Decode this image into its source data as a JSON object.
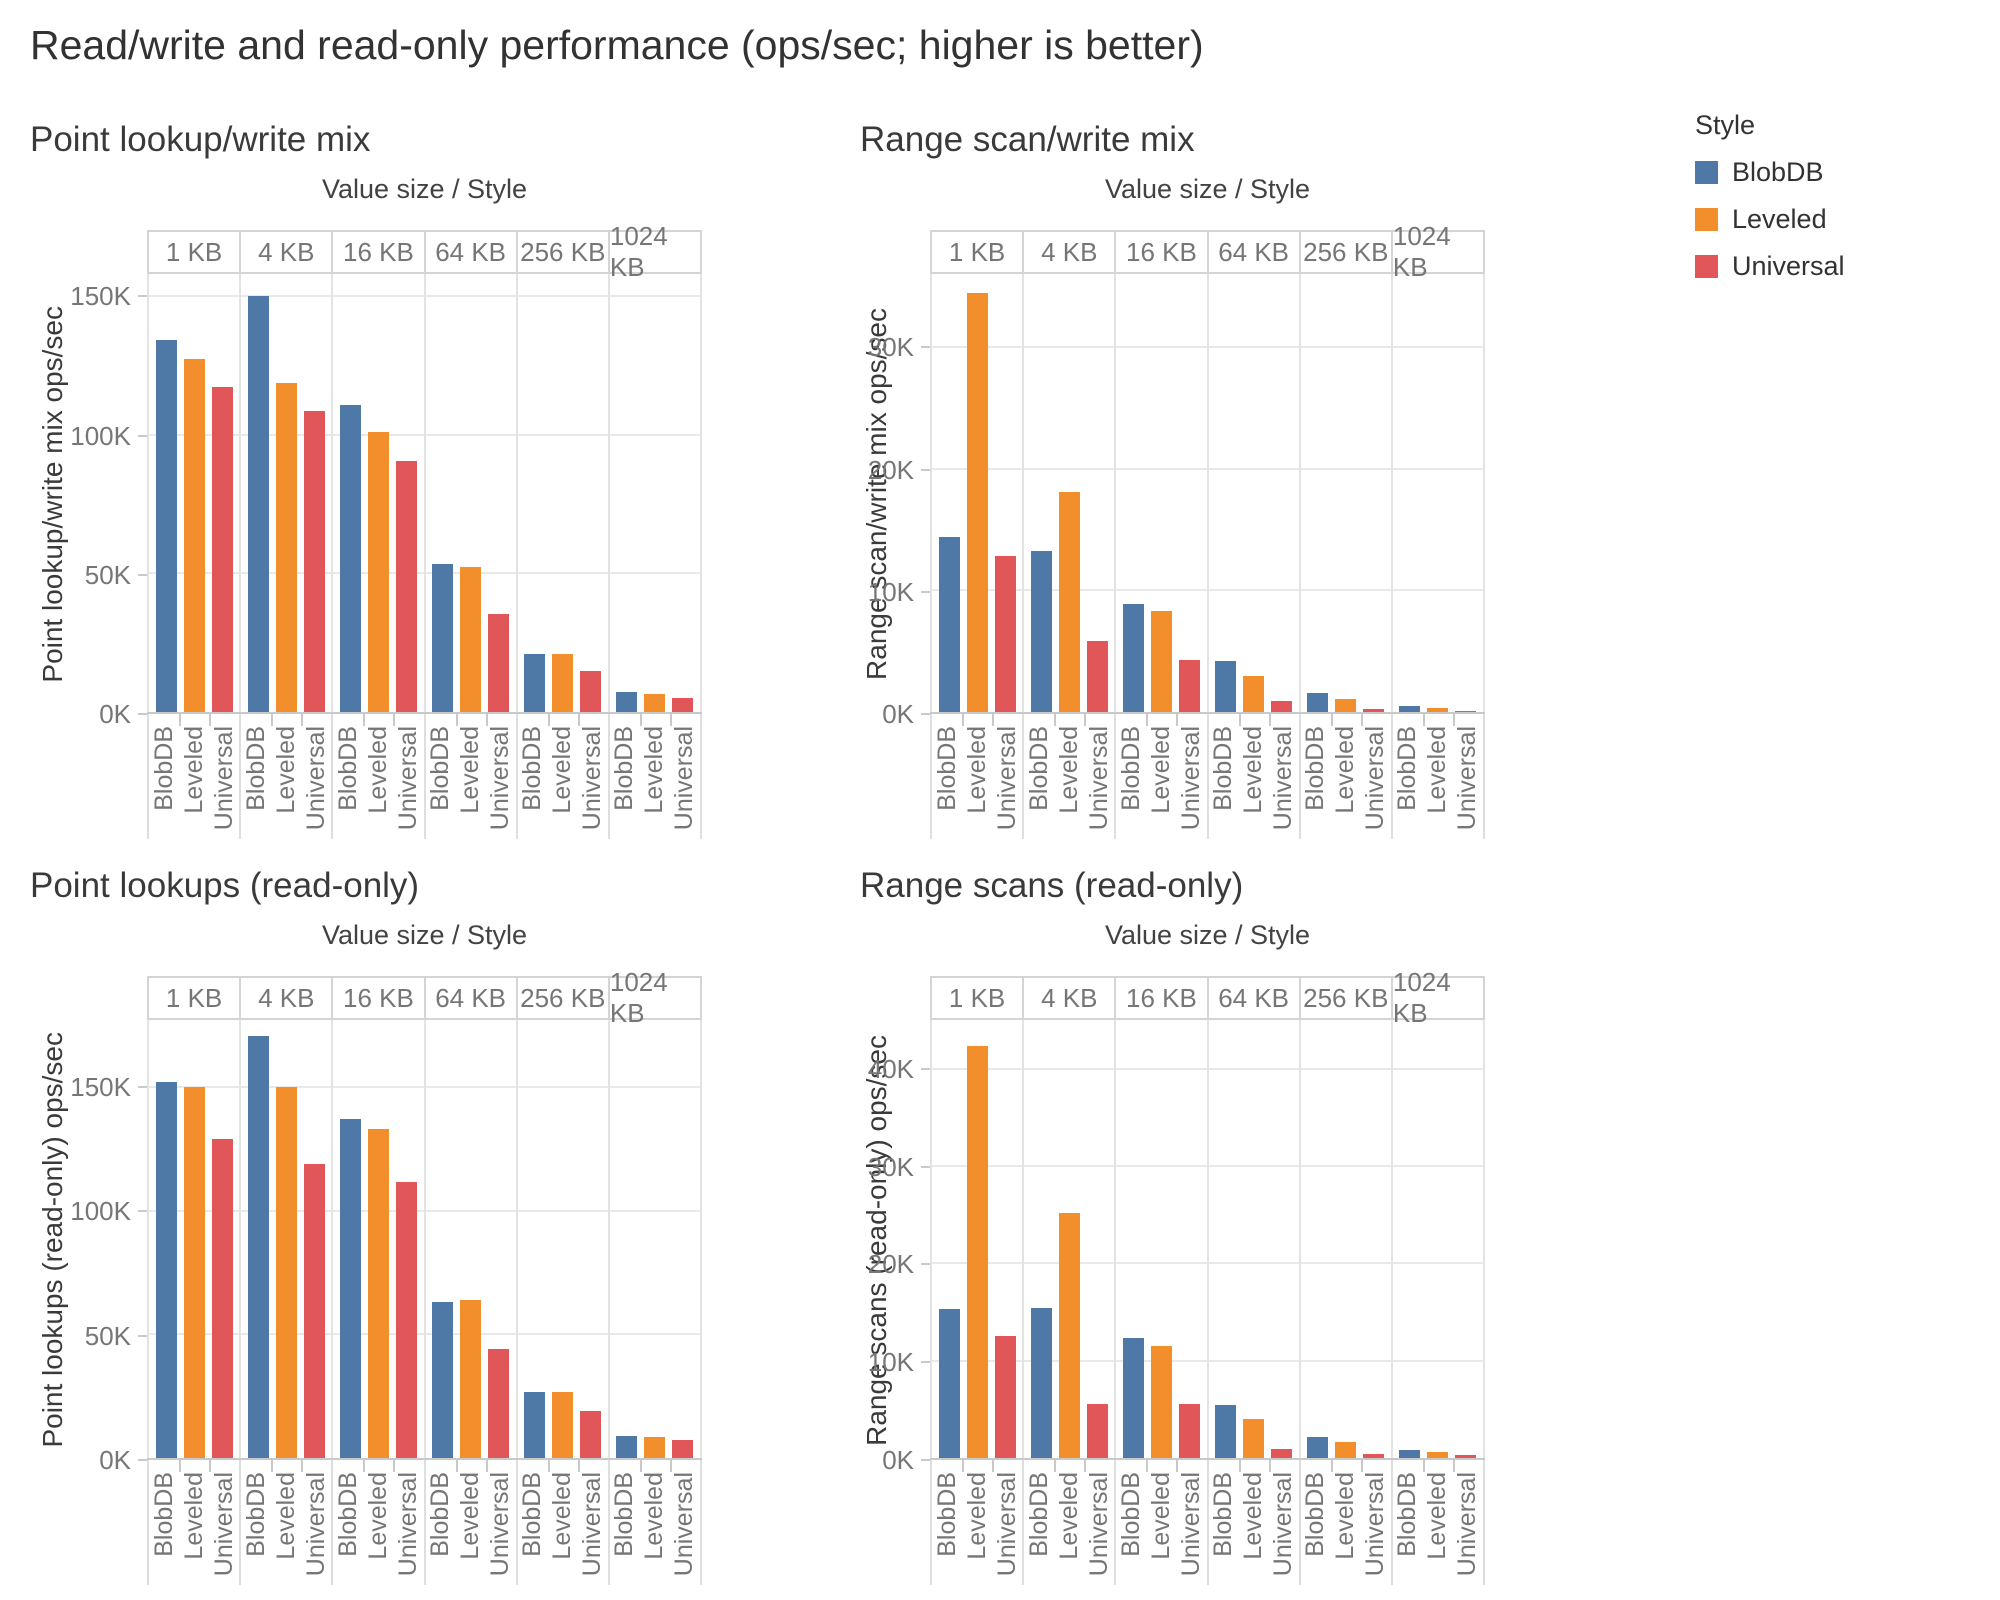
{
  "page_title": "Read/write and read-only performance (ops/sec; higher is better)",
  "styles": [
    "BlobDB",
    "Leveled",
    "Universal"
  ],
  "legend": {
    "title": "Style",
    "items": [
      {
        "label": "BlobDB",
        "color": "#4e79a7"
      },
      {
        "label": "Leveled",
        "color": "#f28e2b"
      },
      {
        "label": "Universal",
        "color": "#e15759"
      }
    ]
  },
  "colors": {
    "blue": "#4e79a7",
    "orange": "#f28e2b",
    "red": "#e15759",
    "gridline": "#e9e9e9",
    "axis": "#c9c9c9",
    "tick_text": "#767676",
    "title_text": "#323232"
  },
  "chart_data": [
    {
      "type": "bar",
      "title": "Point lookup/write mix",
      "col_header": "Value size  /  Style",
      "ylabel": "Point lookup/write mix ops/sec",
      "unit": "thousand ops/sec",
      "categories": [
        "1 KB",
        "4 KB",
        "16 KB",
        "64 KB",
        "256 KB",
        "1024 KB"
      ],
      "series": [
        {
          "name": "BlobDB",
          "values": [
            134.3,
            150.0,
            110.8,
            53.4,
            21.0,
            7.2
          ]
        },
        {
          "name": "Leveled",
          "values": [
            127.2,
            118.6,
            101.0,
            52.2,
            21.0,
            6.6
          ]
        },
        {
          "name": "Universal",
          "values": [
            117.2,
            108.6,
            90.7,
            35.2,
            14.8,
            5.0
          ]
        }
      ],
      "ylim": [
        0,
        158
      ],
      "yticks": [
        {
          "label": "0K",
          "value": 0
        },
        {
          "label": "50K",
          "value": 50
        },
        {
          "label": "100K",
          "value": 100
        },
        {
          "label": "150K",
          "value": 150
        }
      ],
      "grid": true,
      "legend_position": "top-right-of-page"
    },
    {
      "type": "bar",
      "title": "Range scan/write mix",
      "col_header": "Value size  /  Style",
      "ylabel": "Range scan/write mix ops/sec",
      "unit": "thousand ops/sec",
      "categories": [
        "1 KB",
        "4 KB",
        "16 KB",
        "64 KB",
        "256 KB",
        "1024 KB"
      ],
      "series": [
        {
          "name": "BlobDB",
          "values": [
            14.4,
            13.2,
            8.9,
            4.2,
            1.6,
            0.5
          ]
        },
        {
          "name": "Leveled",
          "values": [
            34.4,
            18.1,
            8.3,
            3.0,
            1.1,
            0.35
          ]
        },
        {
          "name": "Universal",
          "values": [
            12.8,
            5.8,
            4.3,
            0.9,
            0.25,
            0.1
          ]
        }
      ],
      "ylim": [
        0,
        36
      ],
      "yticks": [
        {
          "label": "0K",
          "value": 0
        },
        {
          "label": "10K",
          "value": 10
        },
        {
          "label": "20K",
          "value": 20
        },
        {
          "label": "30K",
          "value": 30
        }
      ],
      "grid": true,
      "legend_position": "top-right-of-page"
    },
    {
      "type": "bar",
      "title": "Point lookups (read-only)",
      "col_header": "Value size  /  Style",
      "ylabel": "Point lookups (read-only) ops/sec",
      "unit": "thousand ops/sec",
      "categories": [
        "1 KB",
        "4 KB",
        "16 KB",
        "64 KB",
        "256 KB",
        "1024 KB"
      ],
      "series": [
        {
          "name": "BlobDB",
          "values": [
            152.0,
            170.5,
            137.0,
            63.0,
            26.7,
            8.8
          ]
        },
        {
          "name": "Leveled",
          "values": [
            150.0,
            150.0,
            133.0,
            64.0,
            26.7,
            8.6
          ]
        },
        {
          "name": "Universal",
          "values": [
            129.0,
            119.0,
            111.5,
            44.0,
            19.2,
            7.2
          ]
        }
      ],
      "ylim": [
        0,
        177
      ],
      "yticks": [
        {
          "label": "0K",
          "value": 0
        },
        {
          "label": "50K",
          "value": 50
        },
        {
          "label": "100K",
          "value": 100
        },
        {
          "label": "150K",
          "value": 150
        }
      ],
      "grid": true,
      "legend_position": "top-right-of-page"
    },
    {
      "type": "bar",
      "title": "Range scans (read-only)",
      "col_header": "Value size  /  Style",
      "ylabel": "Range scans (read-only) ops/sec",
      "unit": "thousand ops/sec",
      "categories": [
        "1 KB",
        "4 KB",
        "16 KB",
        "64 KB",
        "256 KB",
        "1024 KB"
      ],
      "series": [
        {
          "name": "BlobDB",
          "values": [
            15.3,
            15.4,
            12.3,
            5.4,
            2.2,
            0.8
          ]
        },
        {
          "name": "Leveled",
          "values": [
            42.3,
            25.2,
            11.5,
            4.0,
            1.6,
            0.6
          ]
        },
        {
          "name": "Universal",
          "values": [
            12.5,
            5.5,
            5.6,
            0.9,
            0.4,
            0.35
          ]
        }
      ],
      "ylim": [
        0,
        45
      ],
      "yticks": [
        {
          "label": "0K",
          "value": 0
        },
        {
          "label": "10K",
          "value": 10
        },
        {
          "label": "20K",
          "value": 20
        },
        {
          "label": "30K",
          "value": 30
        },
        {
          "label": "40K",
          "value": 40
        }
      ],
      "grid": true,
      "legend_position": "top-right-of-page"
    }
  ]
}
